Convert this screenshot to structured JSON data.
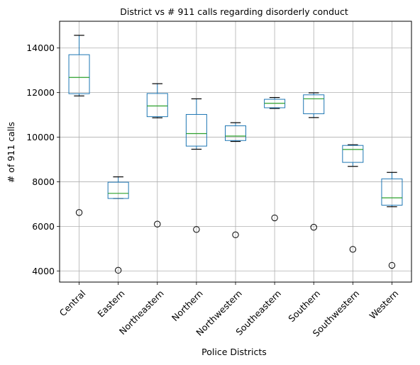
{
  "chart_data": {
    "type": "box",
    "title": "District vs # 911 calls regarding disorderly conduct",
    "xlabel": "Police Districts",
    "ylabel": "# of 911 calls",
    "ylim": [
      3500,
      15200
    ],
    "yticks": [
      4000,
      6000,
      8000,
      10000,
      12000,
      14000
    ],
    "grid": true,
    "colors": {
      "box": "#1f77b4",
      "median": "#2ca02c",
      "whisker": "#000000",
      "grid": "#b0b0b0"
    },
    "categories": [
      "Central",
      "Eastern",
      "Northeastern",
      "Northern",
      "Northwestern",
      "Southeastern",
      "Southern",
      "Southwestern",
      "Western"
    ],
    "boxes": [
      {
        "name": "Central",
        "whislo": 11850,
        "q1": 11950,
        "med": 12680,
        "q3": 13700,
        "whishi": 14570,
        "fliers": [
          6620
        ]
      },
      {
        "name": "Eastern",
        "whislo": 7250,
        "q1": 7250,
        "med": 7480,
        "q3": 7980,
        "whishi": 8220,
        "fliers": [
          4030
        ]
      },
      {
        "name": "Northeastern",
        "whislo": 10870,
        "q1": 10920,
        "med": 11400,
        "q3": 11960,
        "whishi": 12400,
        "fliers": [
          6100
        ]
      },
      {
        "name": "Northern",
        "whislo": 9460,
        "q1": 9600,
        "med": 10160,
        "q3": 11020,
        "whishi": 11720,
        "fliers": [
          5860
        ]
      },
      {
        "name": "Northwestern",
        "whislo": 9810,
        "q1": 9850,
        "med": 10050,
        "q3": 10510,
        "whishi": 10650,
        "fliers": [
          5620
        ]
      },
      {
        "name": "Southeastern",
        "whislo": 11290,
        "q1": 11320,
        "med": 11520,
        "q3": 11700,
        "whishi": 11780,
        "fliers": [
          6380
        ]
      },
      {
        "name": "Southern",
        "whislo": 10880,
        "q1": 11050,
        "med": 11720,
        "q3": 11900,
        "whishi": 11990,
        "fliers": [
          5960
        ]
      },
      {
        "name": "Southwestern",
        "whislo": 8690,
        "q1": 8870,
        "med": 9450,
        "q3": 9630,
        "whishi": 9660,
        "fliers": [
          4970
        ]
      },
      {
        "name": "Western",
        "whislo": 6880,
        "q1": 6950,
        "med": 7280,
        "q3": 8130,
        "whishi": 8420,
        "fliers": [
          4250
        ]
      }
    ]
  }
}
